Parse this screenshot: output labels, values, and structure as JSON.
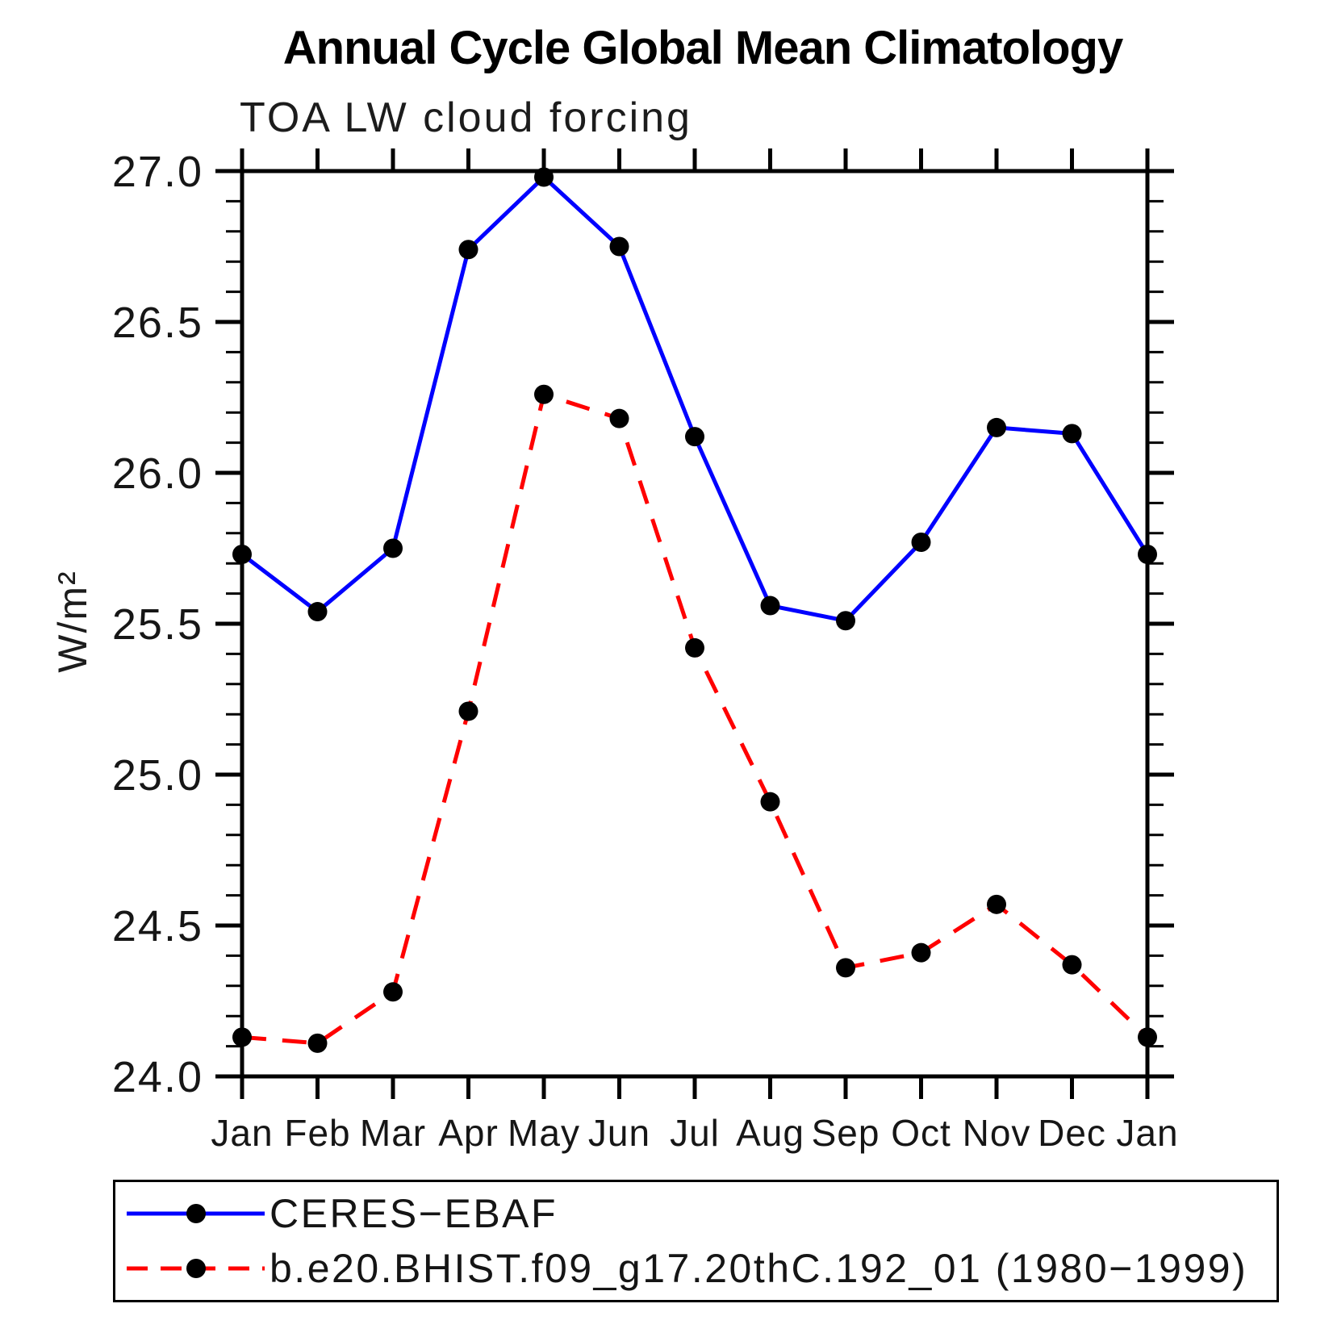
{
  "header": {
    "title": "Annual Cycle Global Mean Climatology",
    "subtitle": "TOA LW cloud forcing"
  },
  "chart_data": {
    "type": "line",
    "title": "Annual Cycle Global Mean Climatology",
    "subtitle": "TOA LW cloud forcing",
    "xlabel": "",
    "ylabel": "W/m²",
    "x_tick_labels": [
      "Jan",
      "Feb",
      "Mar",
      "Apr",
      "May",
      "Jun",
      "Jul",
      "Aug",
      "Sep",
      "Oct",
      "Nov",
      "Dec",
      "Jan"
    ],
    "ylim": [
      24.0,
      27.0
    ],
    "y_major_step": 0.5,
    "y_minor_step": 0.1,
    "y_tick_labels": [
      "24.0",
      "24.5",
      "25.0",
      "25.5",
      "26.0",
      "26.5",
      "27.0"
    ],
    "grid": false,
    "legend_position": "bottom",
    "axis_color": "#000000",
    "marker_color": "#000000",
    "series": [
      {
        "name": "CERES−EBAF",
        "color": "#0000ff",
        "line_style": "solid",
        "marker": "circle",
        "values": [
          25.73,
          25.54,
          25.75,
          26.74,
          26.98,
          26.75,
          26.12,
          25.56,
          25.51,
          25.77,
          26.15,
          26.13,
          25.73
        ]
      },
      {
        "name": "b.e20.BHIST.f09_g17.20thC.192_01 (1980−1999)",
        "color": "#ff0000",
        "line_style": "dashed",
        "marker": "circle",
        "values": [
          24.13,
          24.11,
          24.28,
          25.21,
          26.26,
          26.18,
          25.42,
          24.91,
          24.36,
          24.41,
          24.57,
          24.37,
          24.13
        ]
      }
    ]
  }
}
